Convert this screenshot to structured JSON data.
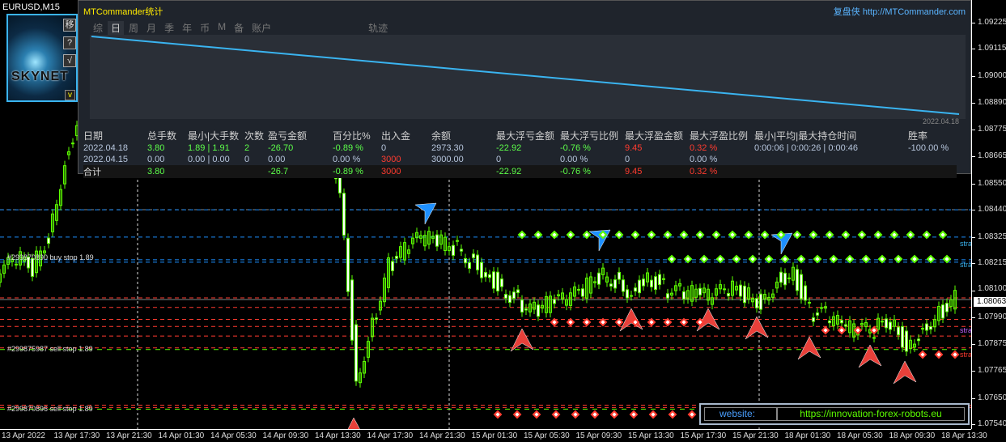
{
  "window": {
    "symbol": "EURUSD,M15"
  },
  "thumbnail": {
    "logo": "SKYNET",
    "buttons": [
      "移",
      "?",
      "√"
    ],
    "version_label": "v"
  },
  "panel": {
    "title": "MTCommander统计",
    "brand": "复盘侠 http://MTCommander.com",
    "tabs": [
      "综",
      "日",
      "周",
      "月",
      "季",
      "年",
      "币",
      "M",
      "备",
      "账户",
      "轨迹"
    ],
    "active_tab": "日",
    "mini_chart_date": "2022.04.18",
    "columns": [
      "日期",
      "总手数",
      "最小|大手数",
      "次数",
      "盈亏金额",
      "百分比%",
      "出入金",
      "余额",
      "最大浮亏金额",
      "最大浮亏比例",
      "最大浮盈金额",
      "最大浮盈比例",
      "最小|平均|最大持仓时间",
      "胜率"
    ],
    "rows": [
      [
        "2022.04.18",
        "3.80",
        "1.89 | 1.91",
        "2",
        "-26.70",
        "-0.89 %",
        "0",
        "2973.30",
        "-22.92",
        "-0.76 %",
        "9.45",
        "0.32 %",
        "0:00:06 | 0:00:26 | 0:00:46",
        "-100.00 %"
      ],
      [
        "2022.04.15",
        "0.00",
        "0.00 | 0.00",
        "0",
        "0.00",
        "0.00 %",
        "3000",
        "3000.00",
        "0",
        "0.00 %",
        "0",
        "0.00 %",
        "",
        ""
      ]
    ],
    "total": [
      "合计",
      "3.80",
      "",
      "",
      "-26.7",
      "-0.89 %",
      "3000",
      "",
      "-22.92",
      "-0.76 %",
      "9.45",
      "0.32 %",
      "",
      ""
    ]
  },
  "price_axis": [
    "1.09225",
    "1.09115",
    "1.09000",
    "1.08890",
    "1.08775",
    "1.08665",
    "1.08550",
    "1.08440",
    "1.08325",
    "1.08215",
    "1.08100",
    "1.07990",
    "1.07875",
    "1.07765",
    "1.07650",
    "1.07540"
  ],
  "current_price": "1.08063",
  "time_axis": [
    "13 Apr 2022",
    "13 Apr 17:30",
    "13 Apr 21:30",
    "14 Apr 01:30",
    "14 Apr 05:30",
    "14 Apr 09:30",
    "14 Apr 13:30",
    "14 Apr 17:30",
    "14 Apr 21:30",
    "15 Apr 01:30",
    "15 Apr 05:30",
    "15 Apr 09:30",
    "15 Apr 13:30",
    "15 Apr 17:30",
    "15 Apr 21:30",
    "18 Apr 01:30",
    "18 Apr 05:30",
    "18 Apr 09:30",
    "18 Apr 13:30"
  ],
  "order_labels": [
    "#299870890 buy stop 1.89",
    "#299875987 sell stop 1.89",
    "#299870896 sell stop 1.89"
  ],
  "side_labels": [
    "stra",
    "stra",
    "stra",
    "stra"
  ],
  "website": {
    "label": "website:",
    "url": "https://innovation-forex-robots.eu"
  },
  "colors": {
    "bull": "#5dff00",
    "bear": "#ffffff",
    "buy_line": "#1e90ff",
    "sell_line": "#ff3b2f",
    "tp_line": "#5dff00",
    "panel_line": "#3ab4f0"
  },
  "chart_data": {
    "type": "candlestick",
    "symbol": "EURUSD",
    "timeframe": "M15",
    "ylim": [
      1.0754,
      1.09225
    ],
    "closes": [
      1.08165,
      1.08233,
      1.08199,
      1.08335,
      1.08641,
      1.08878,
      1.08946,
      1.0898,
      1.0897,
      1.0896,
      1.0895,
      1.0893,
      1.0891,
      1.0889,
      1.0888,
      1.0887,
      1.0886,
      1.0885,
      1.0884,
      1.0883,
      1.0882,
      1.08539,
      1.07724,
      1.07961,
      1.08199,
      1.08267,
      1.08318,
      1.08301,
      1.08284,
      1.08233,
      1.08182,
      1.08114,
      1.08063,
      1.08012,
      1.08046,
      1.08056,
      1.08097,
      1.08165,
      1.08148,
      1.08097,
      1.08165,
      1.08114,
      1.0809,
      1.0808,
      1.0807,
      1.08104,
      1.0809,
      1.08056,
      1.08148,
      1.08182,
      1.08012,
      1.07995,
      1.07944,
      1.07927,
      1.07934,
      1.07978,
      1.07876,
      1.07944,
      1.08012,
      1.08063
    ],
    "buy_levels": [
      1.0844,
      1.08325,
      1.0823,
      1.0822
    ],
    "sell_levels": [
      1.0807,
      1.0803,
      1.0798,
      1.0795,
      1.0791,
      1.0786,
      1.0762,
      1.0761
    ],
    "tp_levels": [
      1.0786,
      1.0761
    ]
  }
}
